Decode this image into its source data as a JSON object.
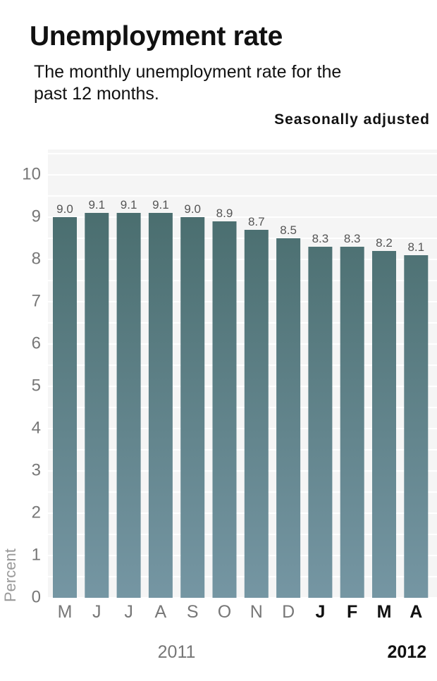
{
  "title": "Unemployment rate",
  "subtitle": "The monthly unemployment rate for the past 12 months.",
  "note": "Seasonally adjusted",
  "colors": {
    "bar_top": "#466a6a",
    "bar_bottom": "#7596a3",
    "band": "#f5f5f5",
    "axis_text": "#777777",
    "dark_text": "#111111"
  },
  "chart_data": {
    "type": "bar",
    "title": "Unemployment rate",
    "ylabel": "Percent",
    "ylim": [
      0,
      10
    ],
    "yticks": [
      "0",
      "1",
      "2",
      "3",
      "4",
      "5",
      "6",
      "7",
      "8",
      "9",
      "10"
    ],
    "categories": [
      "M",
      "J",
      "J",
      "A",
      "S",
      "O",
      "N",
      "D",
      "J",
      "F",
      "M",
      "A"
    ],
    "values": [
      9.0,
      9.1,
      9.1,
      9.1,
      9.0,
      8.9,
      8.7,
      8.5,
      8.3,
      8.3,
      8.2,
      8.1
    ],
    "value_labels": [
      "9.0",
      "9.1",
      "9.1",
      "9.1",
      "9.0",
      "8.9",
      "8.7",
      "8.5",
      "8.3",
      "8.3",
      "8.2",
      "8.1"
    ],
    "years": [
      {
        "label": "2011",
        "first": 0,
        "last": 7
      },
      {
        "label": "2012",
        "first": 8,
        "last": 11
      }
    ],
    "grid": true,
    "legend": "none"
  }
}
